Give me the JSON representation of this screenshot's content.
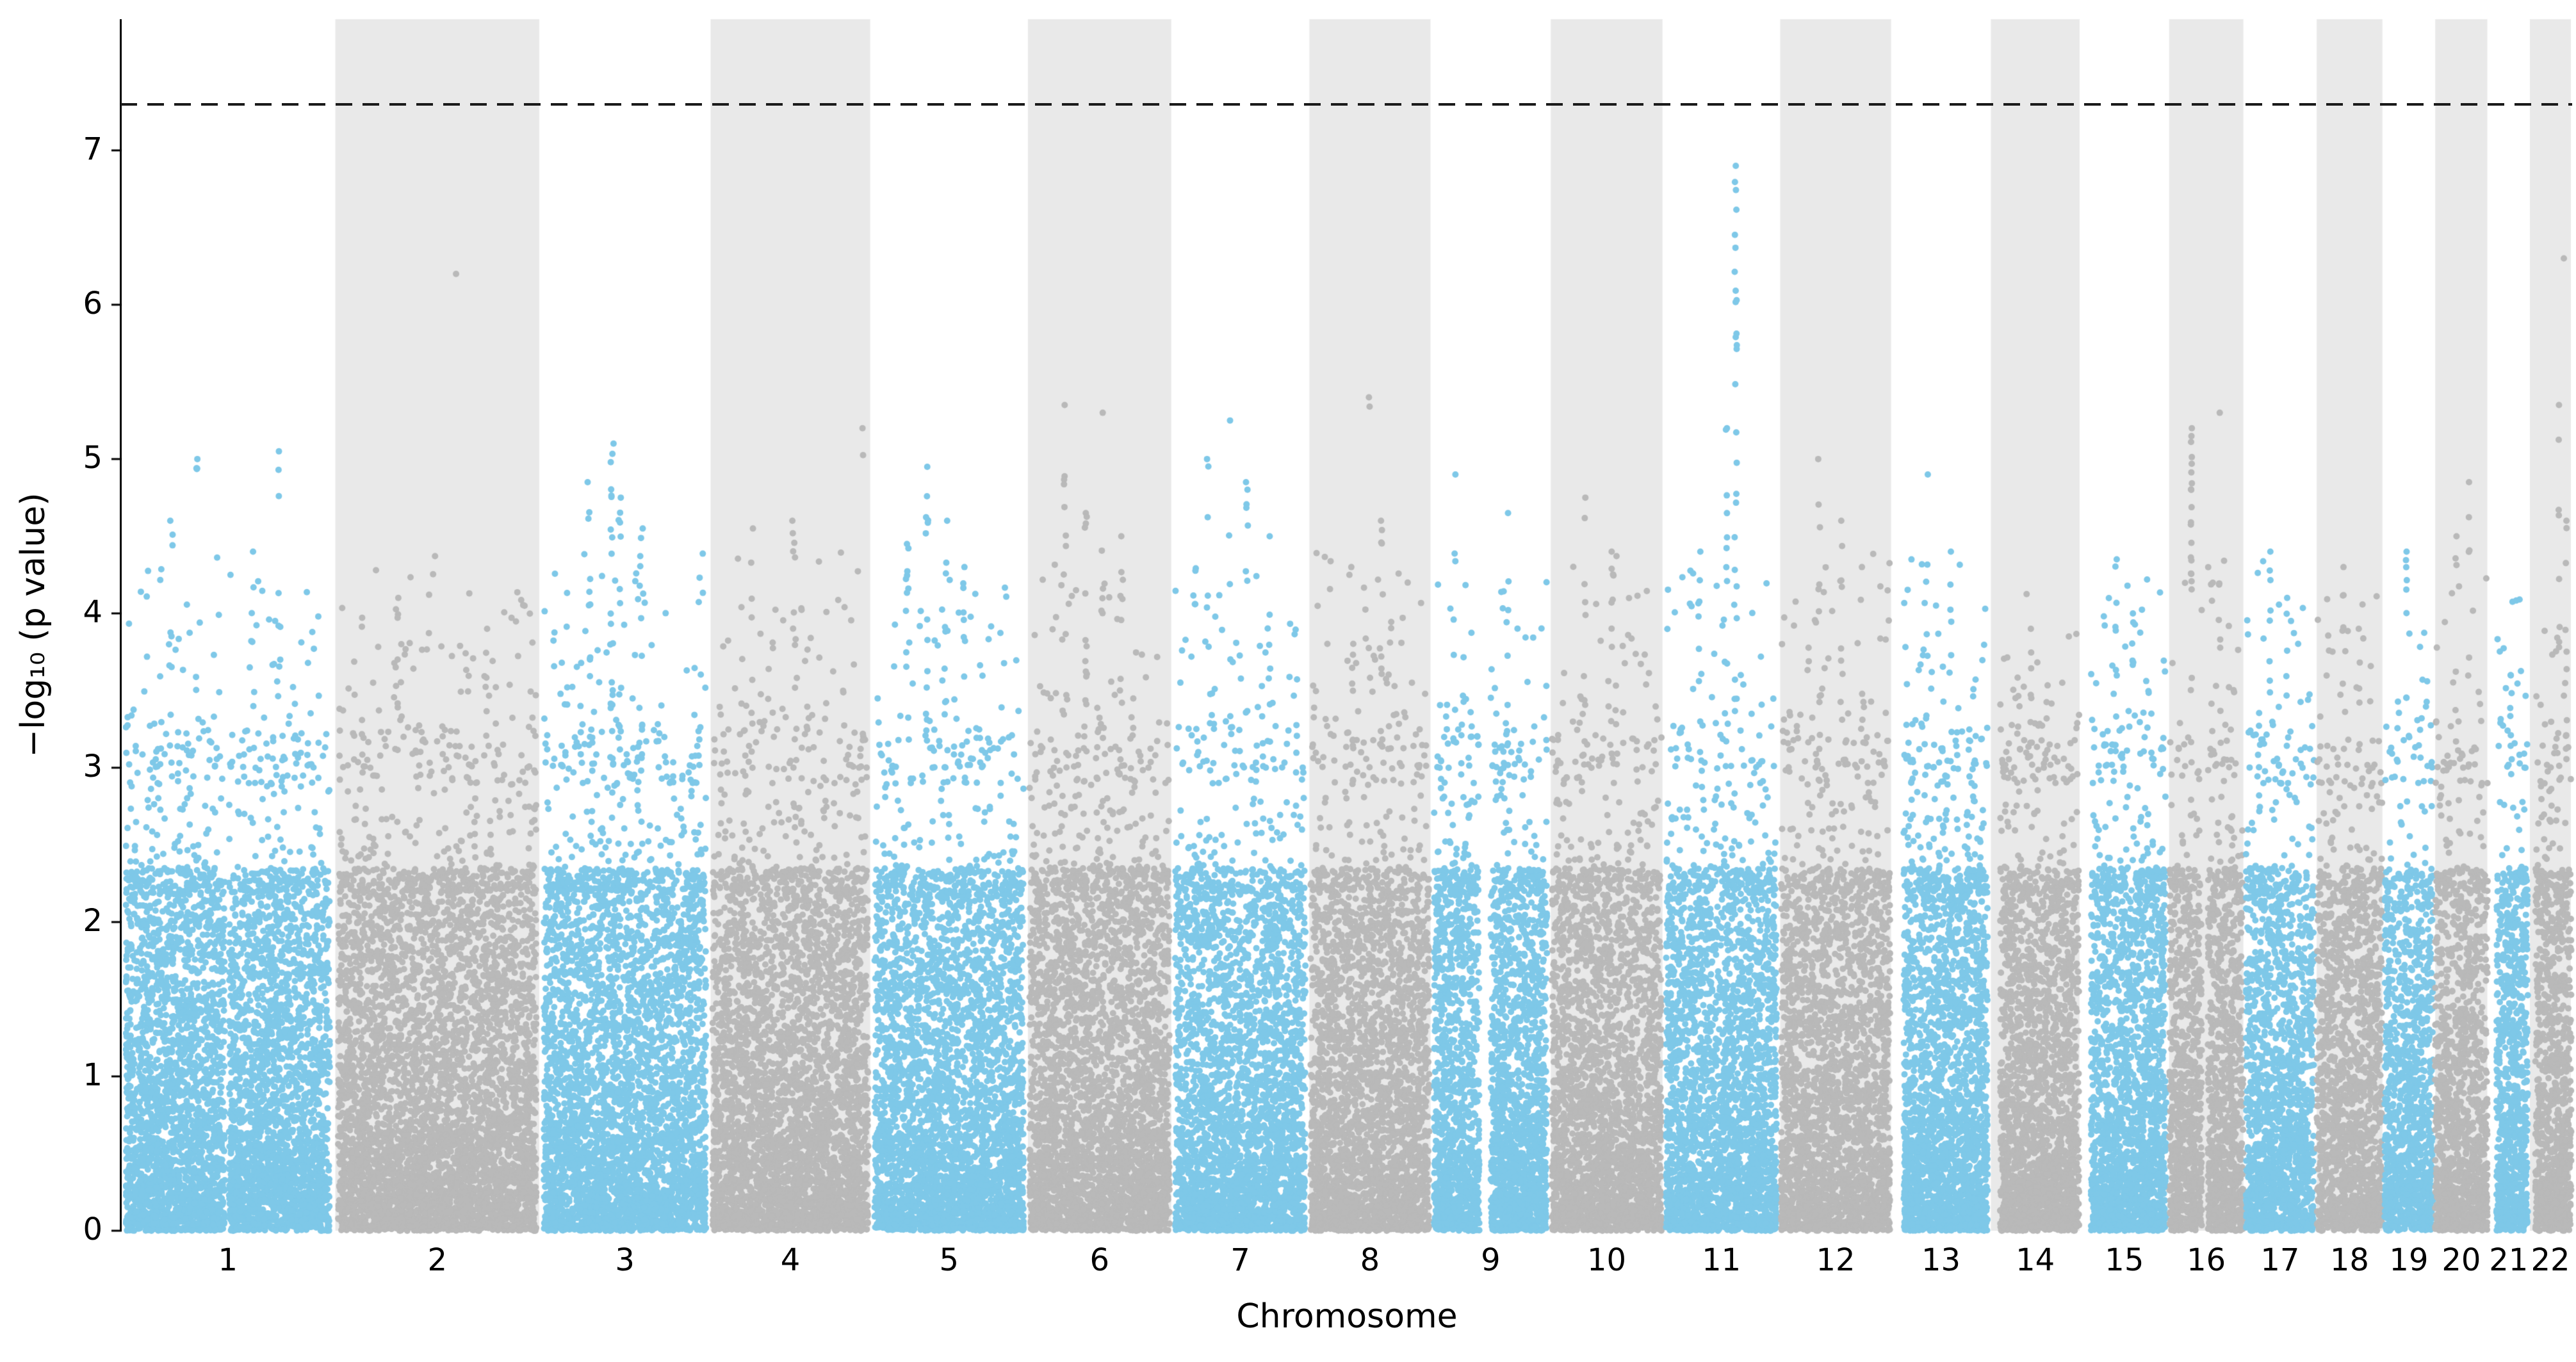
{
  "chart_data": {
    "type": "scatter",
    "subtype": "manhattan",
    "title": "",
    "xlabel": "Chromosome",
    "ylabel": "−log₁₀ (p value)",
    "ylim": [
      0,
      7.85
    ],
    "yticks": [
      0,
      1,
      2,
      3,
      4,
      5,
      6,
      7
    ],
    "significance_line_y": 7.3,
    "significance_line_style": "dashed",
    "grid": false,
    "legend": null,
    "point_radius_px": 5,
    "seed": 7,
    "null_points_per_mb": 20,
    "mid_scatter_per_mb": 0.25,
    "colors": {
      "odd_points": "#7EC8E8",
      "even_points": "#B9B9B9",
      "band": "#E9E9E9",
      "sig_line": "#1A1A1A",
      "axis": "#000000",
      "background": "#FFFFFF"
    },
    "chromosomes": [
      {
        "label": "1",
        "length": 249,
        "gaps": [
          [
            0.485,
            0.505
          ]
        ],
        "peaks": [
          {
            "pos": 0.22,
            "top": 4.6,
            "n": 8
          },
          {
            "pos": 0.35,
            "top": 5.0,
            "n": 6
          },
          {
            "pos": 0.62,
            "top": 4.4,
            "n": 8
          },
          {
            "pos": 0.75,
            "top": 5.05,
            "n": 10
          }
        ]
      },
      {
        "label": "2",
        "length": 242,
        "gaps": [],
        "peaks": [
          {
            "pos": 0.3,
            "top": 4.1,
            "n": 8
          },
          {
            "pos": 0.6,
            "top": 6.2,
            "n": 1
          },
          {
            "pos": 0.75,
            "top": 3.9,
            "n": 6
          }
        ]
      },
      {
        "label": "3",
        "length": 198,
        "gaps": [],
        "peaks": [
          {
            "pos": 0.28,
            "top": 4.85,
            "n": 10
          },
          {
            "pos": 0.42,
            "top": 5.1,
            "n": 18
          },
          {
            "pos": 0.47,
            "top": 4.75,
            "n": 14
          },
          {
            "pos": 0.6,
            "top": 4.55,
            "n": 8
          }
        ]
      },
      {
        "label": "4",
        "length": 190,
        "gaps": [],
        "peaks": [
          {
            "pos": 0.25,
            "top": 4.55,
            "n": 6
          },
          {
            "pos": 0.52,
            "top": 4.6,
            "n": 8
          },
          {
            "pos": 0.96,
            "top": 5.2,
            "n": 3
          }
        ]
      },
      {
        "label": "5",
        "length": 182,
        "gaps": [],
        "peaks": [
          {
            "pos": 0.22,
            "top": 4.45,
            "n": 8
          },
          {
            "pos": 0.35,
            "top": 4.95,
            "n": 10
          },
          {
            "pos": 0.48,
            "top": 4.6,
            "n": 10
          },
          {
            "pos": 0.6,
            "top": 4.3,
            "n": 6
          }
        ]
      },
      {
        "label": "6",
        "length": 171,
        "gaps": [],
        "peaks": [
          {
            "pos": 0.25,
            "top": 5.35,
            "n": 8
          },
          {
            "pos": 0.4,
            "top": 4.65,
            "n": 12
          },
          {
            "pos": 0.52,
            "top": 5.3,
            "n": 6
          },
          {
            "pos": 0.65,
            "top": 4.5,
            "n": 6
          }
        ]
      },
      {
        "label": "7",
        "length": 159,
        "gaps": [],
        "peaks": [
          {
            "pos": 0.25,
            "top": 5.0,
            "n": 6
          },
          {
            "pos": 0.42,
            "top": 5.25,
            "n": 4
          },
          {
            "pos": 0.55,
            "top": 4.85,
            "n": 8
          },
          {
            "pos": 0.72,
            "top": 4.5,
            "n": 8
          }
        ]
      },
      {
        "label": "8",
        "length": 145,
        "gaps": [],
        "peaks": [
          {
            "pos": 0.35,
            "top": 4.3,
            "n": 8
          },
          {
            "pos": 0.5,
            "top": 5.4,
            "n": 3
          },
          {
            "pos": 0.6,
            "top": 4.6,
            "n": 10
          }
        ]
      },
      {
        "label": "9",
        "length": 138,
        "gaps": [
          [
            0.4,
            0.5
          ]
        ],
        "peaks": [
          {
            "pos": 0.18,
            "top": 4.9,
            "n": 5
          },
          {
            "pos": 0.65,
            "top": 4.65,
            "n": 8
          }
        ]
      },
      {
        "label": "10",
        "length": 134,
        "gaps": [],
        "peaks": [
          {
            "pos": 0.3,
            "top": 4.75,
            "n": 5
          },
          {
            "pos": 0.55,
            "top": 4.4,
            "n": 8
          }
        ]
      },
      {
        "label": "11",
        "length": 135,
        "gaps": [],
        "peaks": [
          {
            "pos": 0.3,
            "top": 4.4,
            "n": 8
          },
          {
            "pos": 0.55,
            "top": 5.2,
            "n": 10
          },
          {
            "pos": 0.63,
            "top": 6.9,
            "n": 26
          }
        ]
      },
      {
        "label": "12",
        "length": 133,
        "gaps": [],
        "peaks": [
          {
            "pos": 0.35,
            "top": 5.0,
            "n": 8
          },
          {
            "pos": 0.55,
            "top": 4.6,
            "n": 8
          },
          {
            "pos": 0.75,
            "top": 4.3,
            "n": 6
          }
        ]
      },
      {
        "label": "13",
        "length": 114,
        "gaps": [
          [
            0.0,
            0.1
          ]
        ],
        "peaks": [
          {
            "pos": 0.35,
            "top": 4.9,
            "n": 6
          },
          {
            "pos": 0.6,
            "top": 4.4,
            "n": 6
          }
        ]
      },
      {
        "label": "14",
        "length": 107,
        "gaps": [
          [
            0.0,
            0.1
          ]
        ],
        "peaks": [
          {
            "pos": 0.45,
            "top": 3.9,
            "n": 6
          }
        ]
      },
      {
        "label": "15",
        "length": 102,
        "gaps": [
          [
            0.0,
            0.1
          ]
        ],
        "peaks": [
          {
            "pos": 0.4,
            "top": 4.35,
            "n": 8
          },
          {
            "pos": 0.6,
            "top": 4.0,
            "n": 6
          }
        ]
      },
      {
        "label": "16",
        "length": 90,
        "gaps": [
          [
            0.44,
            0.52
          ]
        ],
        "peaks": [
          {
            "pos": 0.3,
            "top": 5.2,
            "n": 22
          },
          {
            "pos": 0.68,
            "top": 5.3,
            "n": 2
          }
        ]
      },
      {
        "label": "17",
        "length": 83,
        "gaps": [],
        "peaks": [
          {
            "pos": 0.35,
            "top": 4.4,
            "n": 8
          },
          {
            "pos": 0.6,
            "top": 4.1,
            "n": 6
          }
        ]
      },
      {
        "label": "18",
        "length": 80,
        "gaps": [],
        "peaks": [
          {
            "pos": 0.4,
            "top": 4.3,
            "n": 6
          },
          {
            "pos": 0.65,
            "top": 3.9,
            "n": 5
          }
        ]
      },
      {
        "label": "19",
        "length": 59,
        "gaps": [],
        "peaks": [
          {
            "pos": 0.45,
            "top": 4.4,
            "n": 8
          }
        ]
      },
      {
        "label": "20",
        "length": 64,
        "gaps": [],
        "peaks": [
          {
            "pos": 0.4,
            "top": 4.5,
            "n": 6
          },
          {
            "pos": 0.65,
            "top": 4.85,
            "n": 5
          }
        ]
      },
      {
        "label": "21",
        "length": 47,
        "gaps": [
          [
            0.0,
            0.18
          ]
        ],
        "peaks": [
          {
            "pos": 0.55,
            "top": 3.6,
            "n": 5
          }
        ]
      },
      {
        "label": "22",
        "length": 51,
        "gaps": [
          [
            0.0,
            0.14
          ]
        ],
        "peaks": [
          {
            "pos": 0.7,
            "top": 5.35,
            "n": 6
          },
          {
            "pos": 0.82,
            "top": 6.3,
            "n": 2
          },
          {
            "pos": 0.88,
            "top": 4.6,
            "n": 8
          }
        ]
      }
    ]
  }
}
